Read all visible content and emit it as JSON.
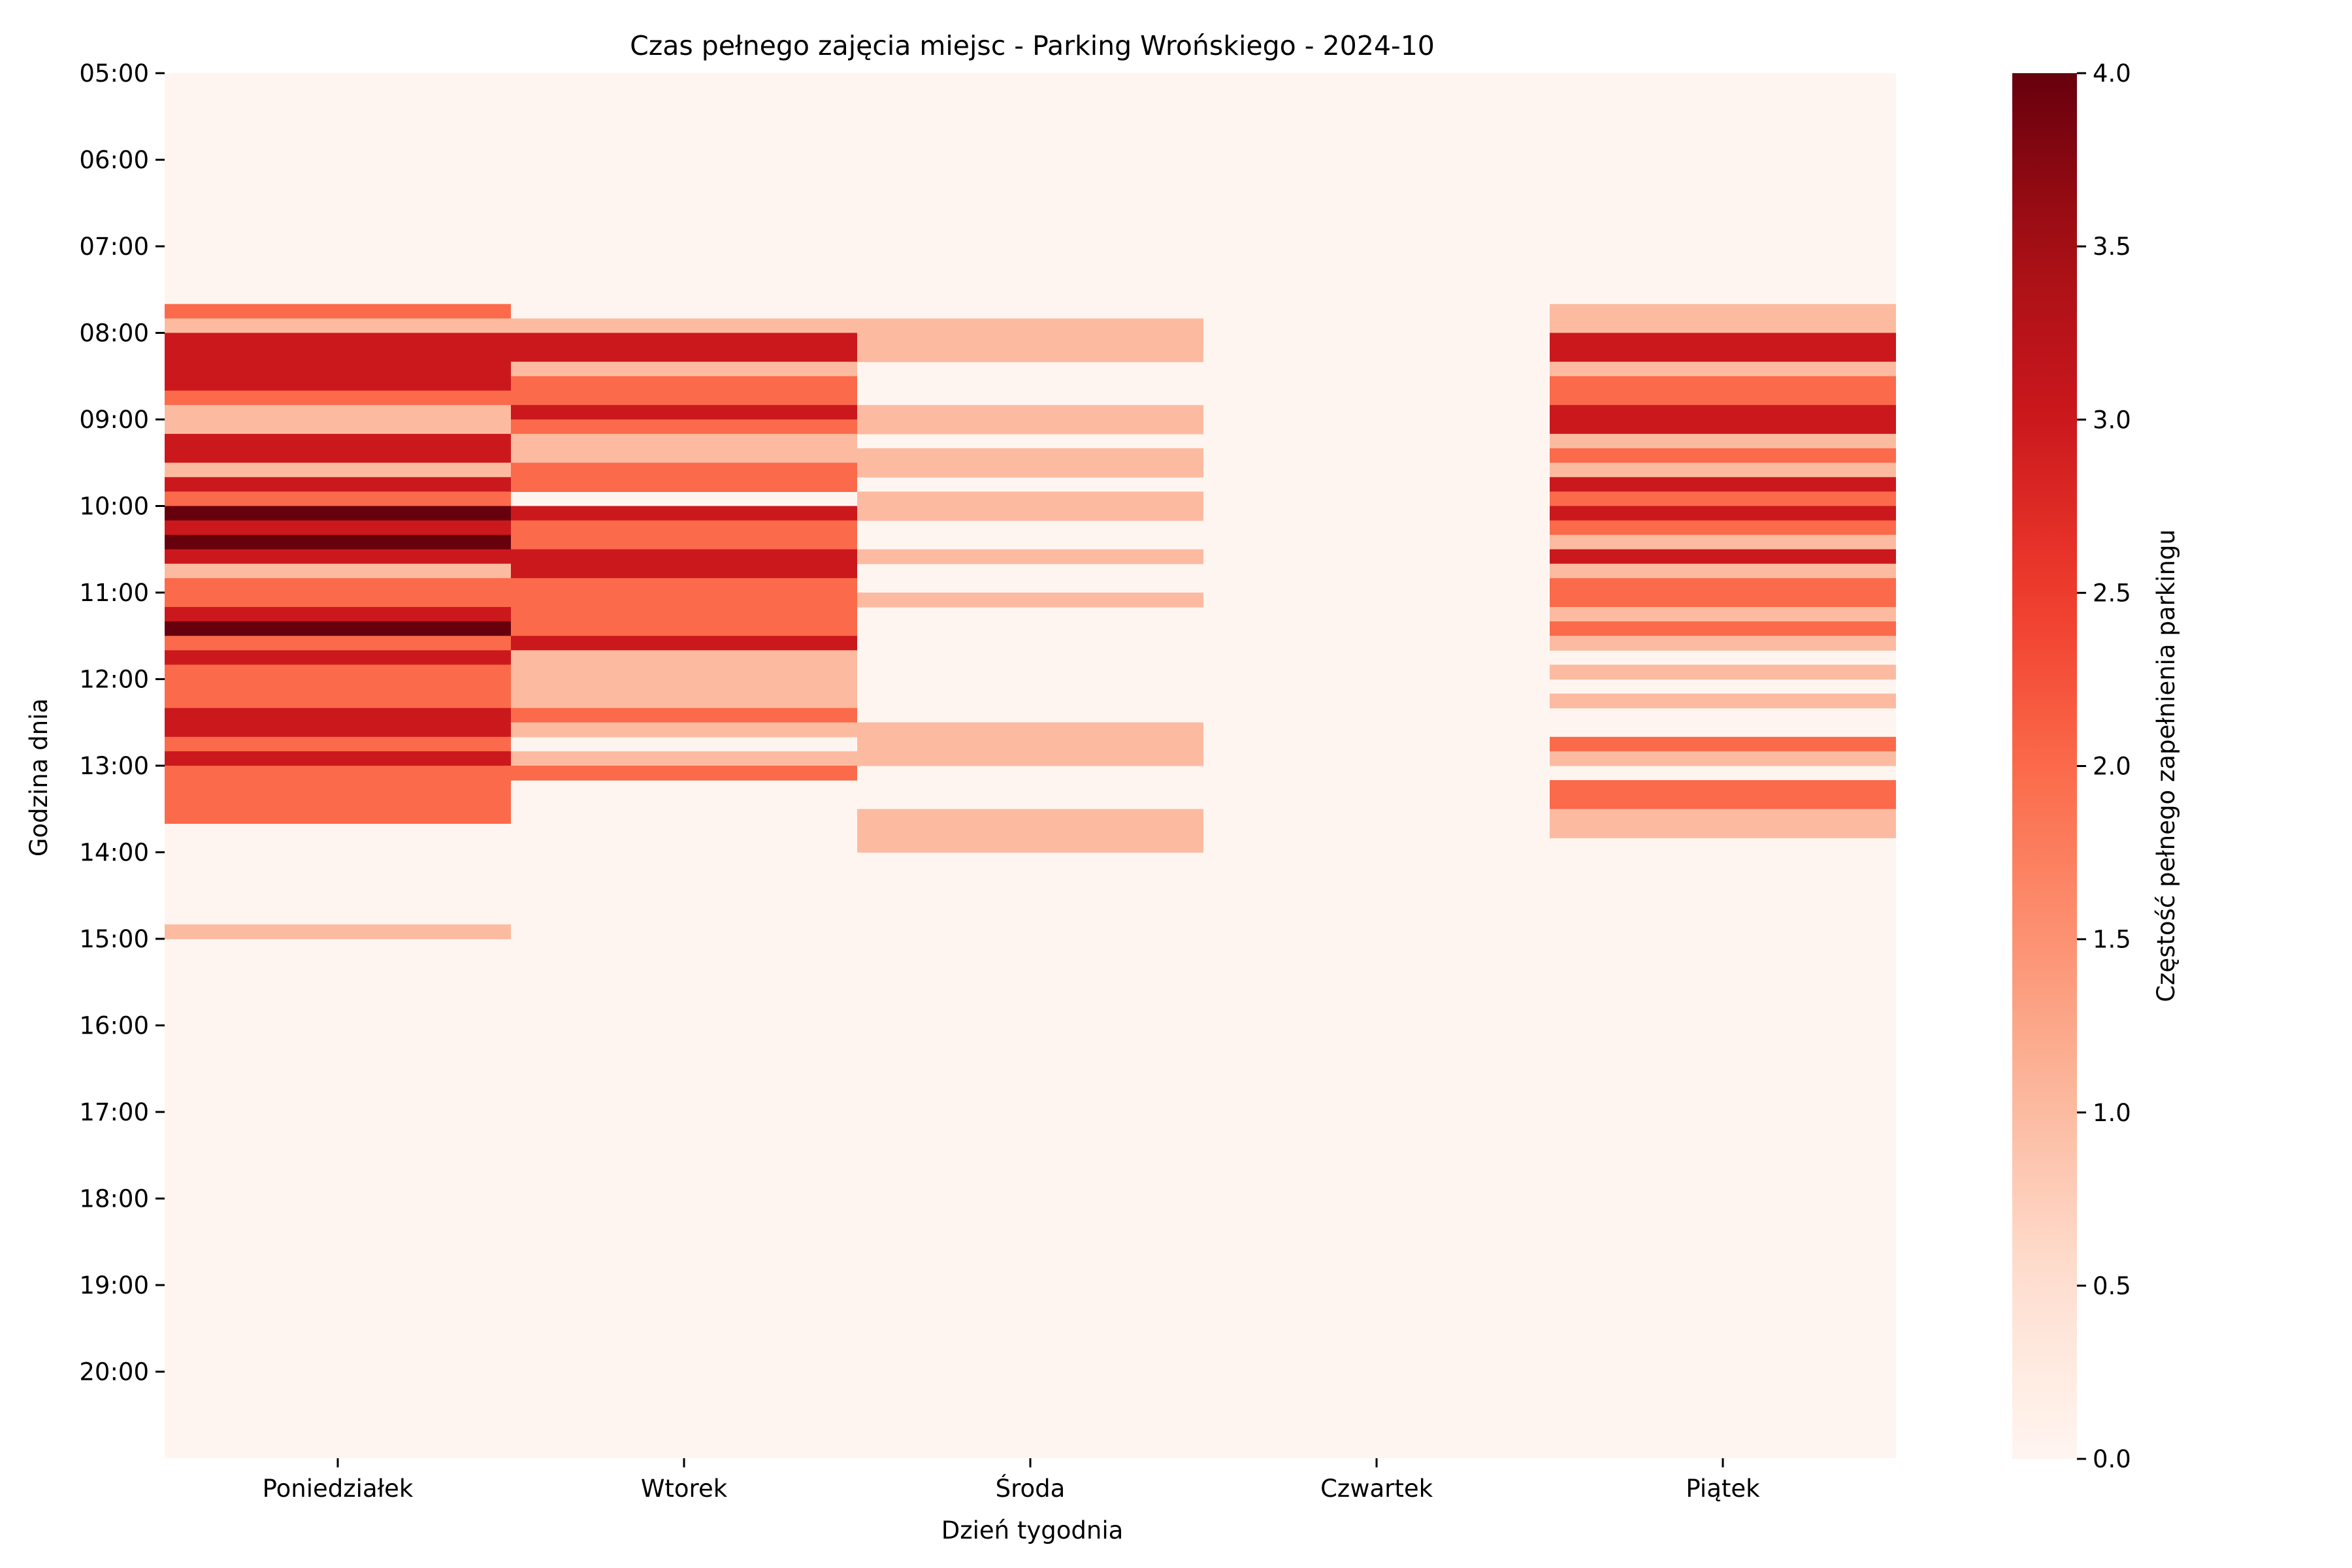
{
  "chart_data": {
    "type": "heatmap",
    "title": "Czas pełnego zajęcia miejsc - Parking Wrońskiego - 2024-10",
    "xlabel": "Dzień tygodnia",
    "ylabel": "Godzina dnia",
    "colorbar_label": "Częstość pełnego zapełnienia parkingu",
    "colormap": "Reds",
    "color_range": [
      0,
      4
    ],
    "colorbar_ticks": [
      "0.0",
      "0.5",
      "1.0",
      "1.5",
      "2.0",
      "2.5",
      "3.0",
      "3.5",
      "4.0"
    ],
    "x_categories": [
      "Poniedziałek",
      "Wtorek",
      "Środa",
      "Czwartek",
      "Piątek"
    ],
    "y_tick_labels": [
      "05:00",
      "06:00",
      "07:00",
      "08:00",
      "09:00",
      "10:00",
      "11:00",
      "12:00",
      "13:00",
      "14:00",
      "15:00",
      "16:00",
      "17:00",
      "18:00",
      "19:00",
      "20:00"
    ],
    "slot_minutes": 10,
    "start_time": "05:00",
    "end_time": "20:59",
    "nonzero_cells": {
      "Poniedziałek": [
        {
          "time": "07:40",
          "value": 2
        },
        {
          "time": "07:50",
          "value": 1
        },
        {
          "time": "08:00",
          "value": 3
        },
        {
          "time": "08:10",
          "value": 3
        },
        {
          "time": "08:20",
          "value": 3
        },
        {
          "time": "08:30",
          "value": 3
        },
        {
          "time": "08:40",
          "value": 2
        },
        {
          "time": "08:50",
          "value": 1
        },
        {
          "time": "09:00",
          "value": 1
        },
        {
          "time": "09:10",
          "value": 3
        },
        {
          "time": "09:20",
          "value": 3
        },
        {
          "time": "09:30",
          "value": 1
        },
        {
          "time": "09:40",
          "value": 3
        },
        {
          "time": "09:50",
          "value": 2
        },
        {
          "time": "10:00",
          "value": 4
        },
        {
          "time": "10:10",
          "value": 3
        },
        {
          "time": "10:20",
          "value": 4
        },
        {
          "time": "10:30",
          "value": 3
        },
        {
          "time": "10:40",
          "value": 1
        },
        {
          "time": "10:50",
          "value": 2
        },
        {
          "time": "11:00",
          "value": 2
        },
        {
          "time": "11:10",
          "value": 3
        },
        {
          "time": "11:20",
          "value": 4
        },
        {
          "time": "11:30",
          "value": 2
        },
        {
          "time": "11:40",
          "value": 3
        },
        {
          "time": "11:50",
          "value": 2
        },
        {
          "time": "12:00",
          "value": 2
        },
        {
          "time": "12:10",
          "value": 2
        },
        {
          "time": "12:20",
          "value": 3
        },
        {
          "time": "12:30",
          "value": 3
        },
        {
          "time": "12:40",
          "value": 2
        },
        {
          "time": "12:50",
          "value": 3
        },
        {
          "time": "13:00",
          "value": 2
        },
        {
          "time": "13:10",
          "value": 2
        },
        {
          "time": "13:20",
          "value": 2
        },
        {
          "time": "13:30",
          "value": 2
        },
        {
          "time": "14:50",
          "value": 1
        }
      ],
      "Wtorek": [
        {
          "time": "07:50",
          "value": 1
        },
        {
          "time": "08:00",
          "value": 3
        },
        {
          "time": "08:10",
          "value": 3
        },
        {
          "time": "08:20",
          "value": 1
        },
        {
          "time": "08:30",
          "value": 2
        },
        {
          "time": "08:40",
          "value": 2
        },
        {
          "time": "08:50",
          "value": 3
        },
        {
          "time": "09:00",
          "value": 2
        },
        {
          "time": "09:10",
          "value": 1
        },
        {
          "time": "09:20",
          "value": 1
        },
        {
          "time": "09:30",
          "value": 2
        },
        {
          "time": "09:40",
          "value": 2
        },
        {
          "time": "10:00",
          "value": 3
        },
        {
          "time": "10:10",
          "value": 2
        },
        {
          "time": "10:20",
          "value": 2
        },
        {
          "time": "10:30",
          "value": 3
        },
        {
          "time": "10:40",
          "value": 3
        },
        {
          "time": "10:50",
          "value": 2
        },
        {
          "time": "11:00",
          "value": 2
        },
        {
          "time": "11:10",
          "value": 2
        },
        {
          "time": "11:20",
          "value": 2
        },
        {
          "time": "11:30",
          "value": 3
        },
        {
          "time": "11:40",
          "value": 1
        },
        {
          "time": "11:50",
          "value": 1
        },
        {
          "time": "12:00",
          "value": 1
        },
        {
          "time": "12:10",
          "value": 1
        },
        {
          "time": "12:20",
          "value": 2
        },
        {
          "time": "12:30",
          "value": 1
        },
        {
          "time": "12:50",
          "value": 1
        },
        {
          "time": "13:00",
          "value": 2
        }
      ],
      "Środa": [
        {
          "time": "07:50",
          "value": 1
        },
        {
          "time": "08:00",
          "value": 1
        },
        {
          "time": "08:10",
          "value": 1
        },
        {
          "time": "08:50",
          "value": 1
        },
        {
          "time": "09:00",
          "value": 1
        },
        {
          "time": "09:20",
          "value": 1
        },
        {
          "time": "09:30",
          "value": 1
        },
        {
          "time": "09:50",
          "value": 1
        },
        {
          "time": "10:00",
          "value": 1
        },
        {
          "time": "10:30",
          "value": 1
        },
        {
          "time": "11:00",
          "value": 1
        },
        {
          "time": "12:30",
          "value": 1
        },
        {
          "time": "12:40",
          "value": 1
        },
        {
          "time": "12:50",
          "value": 1
        },
        {
          "time": "13:30",
          "value": 1
        },
        {
          "time": "13:40",
          "value": 1
        },
        {
          "time": "13:50",
          "value": 1
        }
      ],
      "Czwartek": [],
      "Piątek": [
        {
          "time": "07:40",
          "value": 1
        },
        {
          "time": "07:50",
          "value": 1
        },
        {
          "time": "08:00",
          "value": 3
        },
        {
          "time": "08:10",
          "value": 3
        },
        {
          "time": "08:20",
          "value": 1
        },
        {
          "time": "08:30",
          "value": 2
        },
        {
          "time": "08:40",
          "value": 2
        },
        {
          "time": "08:50",
          "value": 3
        },
        {
          "time": "09:00",
          "value": 3
        },
        {
          "time": "09:10",
          "value": 1
        },
        {
          "time": "09:20",
          "value": 2
        },
        {
          "time": "09:30",
          "value": 1
        },
        {
          "time": "09:40",
          "value": 3
        },
        {
          "time": "09:50",
          "value": 2
        },
        {
          "time": "10:00",
          "value": 3
        },
        {
          "time": "10:10",
          "value": 2
        },
        {
          "time": "10:20",
          "value": 1
        },
        {
          "time": "10:30",
          "value": 3
        },
        {
          "time": "10:40",
          "value": 1
        },
        {
          "time": "10:50",
          "value": 2
        },
        {
          "time": "11:00",
          "value": 2
        },
        {
          "time": "11:10",
          "value": 1
        },
        {
          "time": "11:20",
          "value": 2
        },
        {
          "time": "11:30",
          "value": 1
        },
        {
          "time": "11:50",
          "value": 1
        },
        {
          "time": "12:10",
          "value": 1
        },
        {
          "time": "12:40",
          "value": 2
        },
        {
          "time": "12:50",
          "value": 1
        },
        {
          "time": "13:10",
          "value": 2
        },
        {
          "time": "13:20",
          "value": 2
        },
        {
          "time": "13:30",
          "value": 1
        },
        {
          "time": "13:40",
          "value": 1
        }
      ]
    }
  }
}
